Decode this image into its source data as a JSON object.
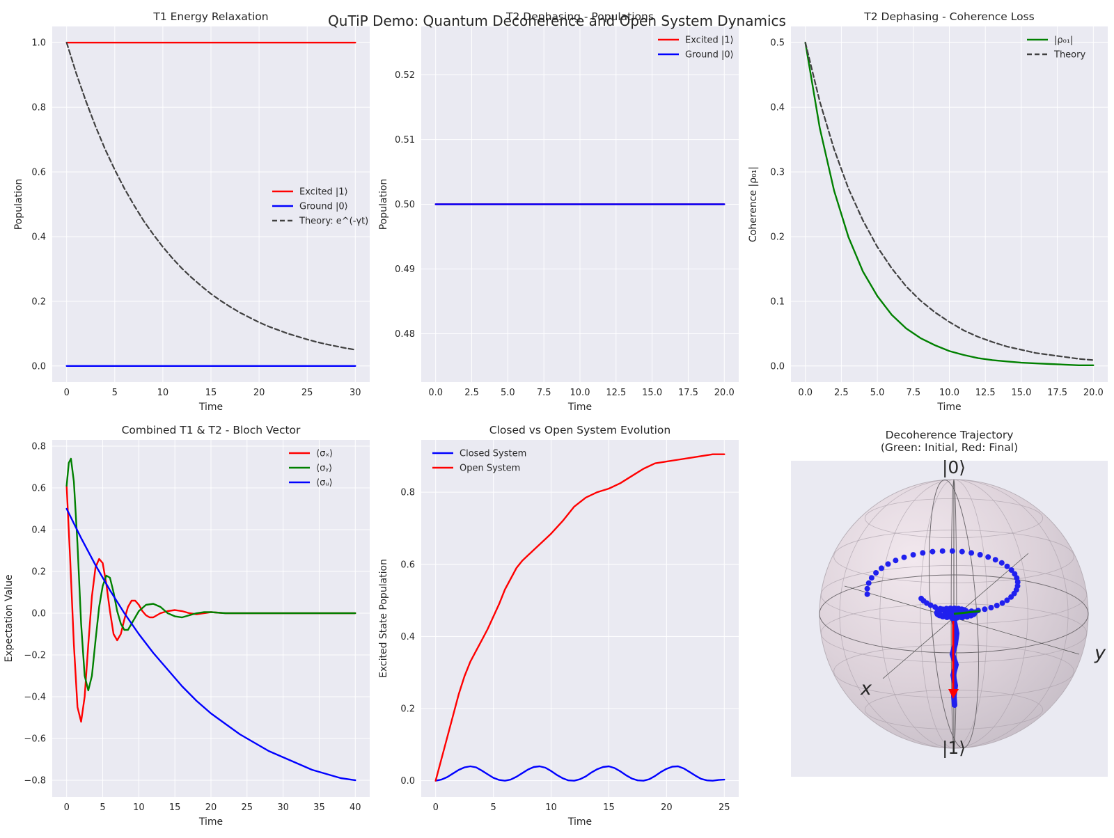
{
  "suptitle": "QuTiP Demo: Quantum Decoherence and Open System Dynamics",
  "colors": {
    "axes_bg": "#eaeaf2",
    "grid": "#ffffff",
    "red": "#ff0000",
    "blue": "#0000ff",
    "green": "#008000",
    "theory": "#404040",
    "bloch_point": "#2020ee"
  },
  "chart_data": [
    {
      "id": "t1",
      "type": "line",
      "title": "T1 Energy Relaxation",
      "xlabel": "Time",
      "ylabel": "Population",
      "xlim": [
        -1.5,
        31.5
      ],
      "ylim": [
        -0.05,
        1.05
      ],
      "xticks": [
        0,
        5,
        10,
        15,
        20,
        25,
        30
      ],
      "yticks": [
        0.0,
        0.2,
        0.4,
        0.6,
        0.8,
        1.0
      ],
      "ytick_labels": [
        "0.0",
        "0.2",
        "0.4",
        "0.6",
        "0.8",
        "1.0"
      ],
      "legend_loc": "center-right",
      "series": [
        {
          "name": "Excited |1⟩",
          "color": "#ff0000",
          "dash": false,
          "x": [
            0,
            30
          ],
          "y": [
            1.0,
            1.0
          ]
        },
        {
          "name": "Ground |0⟩",
          "color": "#0000ff",
          "dash": false,
          "x": [
            0,
            30
          ],
          "y": [
            0.0,
            0.0
          ]
        },
        {
          "name": "Theory: e^(-γt)",
          "color": "#404040",
          "dash": true,
          "x": [
            0,
            1,
            2,
            3,
            4,
            5,
            6,
            7,
            8,
            9,
            10,
            11,
            12,
            13,
            14,
            15,
            16,
            17,
            18,
            19,
            20,
            21,
            22,
            23,
            24,
            25,
            26,
            27,
            28,
            29,
            30
          ],
          "y": [
            1.0,
            0.905,
            0.819,
            0.741,
            0.67,
            0.607,
            0.549,
            0.497,
            0.449,
            0.407,
            0.368,
            0.333,
            0.301,
            0.273,
            0.247,
            0.223,
            0.202,
            0.183,
            0.165,
            0.15,
            0.135,
            0.122,
            0.111,
            0.1,
            0.091,
            0.082,
            0.074,
            0.067,
            0.061,
            0.055,
            0.05
          ]
        }
      ]
    },
    {
      "id": "t2pop",
      "type": "line",
      "title": "T2 Dephasing - Populations",
      "xlabel": "Time",
      "ylabel": "Population",
      "xlim": [
        -1.0,
        21.0
      ],
      "ylim": [
        0.4725,
        0.5275
      ],
      "xticks": [
        0,
        2.5,
        5,
        7.5,
        10,
        12.5,
        15,
        17.5,
        20
      ],
      "xtick_labels": [
        "0.0",
        "2.5",
        "5.0",
        "7.5",
        "10.0",
        "12.5",
        "15.0",
        "17.5",
        "20.0"
      ],
      "yticks": [
        0.48,
        0.49,
        0.5,
        0.51,
        0.52
      ],
      "ytick_labels": [
        "0.48",
        "0.49",
        "0.50",
        "0.51",
        "0.52"
      ],
      "legend_loc": "top-right",
      "series": [
        {
          "name": "Excited |1⟩",
          "color": "#ff0000",
          "dash": false,
          "x": [
            0,
            20
          ],
          "y": [
            0.5,
            0.5
          ]
        },
        {
          "name": "Ground |0⟩",
          "color": "#0000ff",
          "dash": false,
          "x": [
            0,
            20
          ],
          "y": [
            0.5,
            0.5
          ]
        }
      ]
    },
    {
      "id": "t2coh",
      "type": "line",
      "title": "T2 Dephasing - Coherence Loss",
      "xlabel": "Time",
      "ylabel": "Coherence |ρ₀₁|",
      "xlim": [
        -1.0,
        21.0
      ],
      "ylim": [
        -0.025,
        0.525
      ],
      "xticks": [
        0,
        2.5,
        5,
        7.5,
        10,
        12.5,
        15,
        17.5,
        20
      ],
      "xtick_labels": [
        "0.0",
        "2.5",
        "5.0",
        "7.5",
        "10.0",
        "12.5",
        "15.0",
        "17.5",
        "20.0"
      ],
      "yticks": [
        0.0,
        0.1,
        0.2,
        0.3,
        0.4,
        0.5
      ],
      "ytick_labels": [
        "0.0",
        "0.1",
        "0.2",
        "0.3",
        "0.4",
        "0.5"
      ],
      "legend_loc": "top-right",
      "series": [
        {
          "name": "|ρ₀₁|",
          "color": "#008000",
          "dash": false,
          "x": [
            0,
            1,
            2,
            3,
            4,
            5,
            6,
            7,
            8,
            9,
            10,
            11,
            12,
            13,
            14,
            15,
            16,
            17,
            18,
            19,
            20
          ],
          "y": [
            0.5,
            0.368,
            0.271,
            0.199,
            0.146,
            0.108,
            0.079,
            0.058,
            0.043,
            0.032,
            0.023,
            0.017,
            0.012,
            0.009,
            0.007,
            0.005,
            0.004,
            0.003,
            0.002,
            0.001,
            0.001
          ]
        },
        {
          "name": "Theory",
          "color": "#404040",
          "dash": true,
          "x": [
            0,
            1,
            2,
            3,
            4,
            5,
            6,
            7,
            8,
            9,
            10,
            11,
            12,
            13,
            14,
            15,
            16,
            17,
            18,
            19,
            20
          ],
          "y": [
            0.5,
            0.409,
            0.335,
            0.274,
            0.225,
            0.184,
            0.151,
            0.123,
            0.101,
            0.083,
            0.068,
            0.055,
            0.045,
            0.037,
            0.03,
            0.025,
            0.02,
            0.017,
            0.014,
            0.011,
            0.009
          ]
        }
      ]
    },
    {
      "id": "bloch",
      "type": "line",
      "title": "Combined T1 & T2 - Bloch Vector",
      "xlabel": "Time",
      "ylabel": "Expectation Value",
      "xlim": [
        -2.0,
        42.0
      ],
      "ylim": [
        -0.88,
        0.83
      ],
      "xticks": [
        0,
        5,
        10,
        15,
        20,
        25,
        30,
        35,
        40
      ],
      "yticks": [
        -0.8,
        -0.6,
        -0.4,
        -0.2,
        0.0,
        0.2,
        0.4,
        0.6,
        0.8
      ],
      "ytick_labels": [
        "−0.8",
        "−0.6",
        "−0.4",
        "−0.2",
        "0.0",
        "0.2",
        "0.4",
        "0.6",
        "0.8"
      ],
      "legend_loc": "top-right",
      "series": [
        {
          "name": "⟨σₓ⟩",
          "color": "#ff0000",
          "dash": false,
          "x": [
            0,
            0.5,
            1,
            1.5,
            2,
            2.5,
            3,
            3.5,
            4,
            4.5,
            5,
            5.5,
            6,
            6.5,
            7,
            7.5,
            8,
            8.5,
            9,
            9.5,
            10,
            10.5,
            11,
            11.5,
            12,
            12.5,
            13,
            14,
            15,
            16,
            17,
            18,
            19,
            20,
            22,
            24,
            26,
            28,
            30,
            34,
            40
          ],
          "y": [
            0.61,
            0.25,
            -0.15,
            -0.45,
            -0.52,
            -0.4,
            -0.15,
            0.08,
            0.22,
            0.26,
            0.24,
            0.14,
            0.01,
            -0.1,
            -0.13,
            -0.1,
            -0.03,
            0.03,
            0.06,
            0.06,
            0.04,
            0.01,
            -0.01,
            -0.02,
            -0.02,
            -0.01,
            0.0,
            0.01,
            0.015,
            0.01,
            0.0,
            -0.005,
            0.0,
            0.005,
            0.0,
            0.0,
            0.0,
            0.0,
            0.0,
            0.0,
            0.0
          ]
        },
        {
          "name": "⟨σᵧ⟩",
          "color": "#008000",
          "dash": false,
          "x": [
            0,
            0.3,
            0.6,
            1.0,
            1.5,
            2.0,
            2.5,
            3.0,
            3.5,
            4.0,
            4.5,
            5.0,
            5.5,
            6.0,
            6.5,
            7.0,
            7.5,
            8.0,
            8.5,
            9.0,
            9.5,
            10.0,
            11.0,
            12.0,
            13.0,
            14.0,
            15.0,
            16.0,
            17.0,
            18.0,
            19.0,
            20.0,
            22,
            25,
            30,
            35,
            40
          ],
          "y": [
            0.61,
            0.72,
            0.74,
            0.63,
            0.33,
            -0.05,
            -0.3,
            -0.37,
            -0.3,
            -0.13,
            0.03,
            0.13,
            0.18,
            0.17,
            0.1,
            0.01,
            -0.05,
            -0.08,
            -0.08,
            -0.05,
            -0.02,
            0.01,
            0.04,
            0.045,
            0.03,
            0.0,
            -0.015,
            -0.02,
            -0.01,
            0.0,
            0.005,
            0.005,
            0.0,
            0.0,
            0.0,
            0.0,
            0.0
          ]
        },
        {
          "name": "⟨σᵤ⟩",
          "color": "#0000ff",
          "dash": false,
          "x": [
            0,
            2,
            4,
            6,
            8,
            10,
            12,
            14,
            16,
            18,
            20,
            22,
            24,
            26,
            28,
            30,
            32,
            34,
            36,
            38,
            40
          ],
          "y": [
            0.5,
            0.36,
            0.23,
            0.11,
            0.0,
            -0.1,
            -0.19,
            -0.27,
            -0.35,
            -0.42,
            -0.48,
            -0.53,
            -0.58,
            -0.62,
            -0.66,
            -0.69,
            -0.72,
            -0.75,
            -0.77,
            -0.79,
            -0.8
          ]
        }
      ]
    },
    {
      "id": "closedopen",
      "type": "line",
      "title": "Closed vs Open System Evolution",
      "xlabel": "Time",
      "ylabel": "Excited State Population",
      "xlim": [
        -1.25,
        26.25
      ],
      "ylim": [
        -0.045,
        0.945
      ],
      "xticks": [
        0,
        5,
        10,
        15,
        20,
        25
      ],
      "yticks": [
        0.0,
        0.2,
        0.4,
        0.6,
        0.8
      ],
      "ytick_labels": [
        "0.0",
        "0.2",
        "0.4",
        "0.6",
        "0.8"
      ],
      "legend_loc": "top-left",
      "series": [
        {
          "name": "Closed System",
          "color": "#0000ff",
          "dash": false,
          "x": [
            0,
            0.5,
            1,
            1.5,
            2,
            2.5,
            3,
            3.5,
            4,
            4.5,
            5,
            5.5,
            6,
            6.5,
            7,
            7.5,
            8,
            8.5,
            9,
            9.5,
            10,
            10.5,
            11,
            11.5,
            12,
            12.5,
            13,
            13.5,
            14,
            14.5,
            15,
            15.5,
            16,
            16.5,
            17,
            17.5,
            18,
            18.5,
            19,
            19.5,
            20,
            20.5,
            21,
            21.5,
            22,
            22.5,
            23,
            23.5,
            24,
            24.5,
            25
          ],
          "y": [
            0.0,
            0.003,
            0.01,
            0.02,
            0.03,
            0.037,
            0.04,
            0.037,
            0.028,
            0.018,
            0.008,
            0.002,
            0.0,
            0.003,
            0.011,
            0.021,
            0.031,
            0.038,
            0.04,
            0.036,
            0.027,
            0.016,
            0.007,
            0.001,
            0.0,
            0.004,
            0.012,
            0.023,
            0.032,
            0.038,
            0.04,
            0.035,
            0.026,
            0.015,
            0.006,
            0.001,
            0.0,
            0.004,
            0.013,
            0.024,
            0.033,
            0.039,
            0.04,
            0.034,
            0.024,
            0.014,
            0.005,
            0.001,
            0.0,
            0.002,
            0.003
          ]
        },
        {
          "name": "Open System",
          "color": "#ff0000",
          "dash": false,
          "x": [
            0,
            0.5,
            1,
            1.5,
            2,
            2.5,
            3,
            3.5,
            4,
            4.5,
            5,
            5.5,
            6,
            6.5,
            7,
            7.5,
            8,
            8.5,
            9,
            9.5,
            10,
            11,
            12,
            13,
            14,
            15,
            16,
            17,
            18,
            19,
            20,
            21,
            22,
            23,
            24,
            25
          ],
          "y": [
            0.0,
            0.06,
            0.12,
            0.18,
            0.24,
            0.29,
            0.33,
            0.36,
            0.39,
            0.42,
            0.455,
            0.49,
            0.53,
            0.56,
            0.59,
            0.61,
            0.625,
            0.64,
            0.655,
            0.67,
            0.685,
            0.72,
            0.76,
            0.785,
            0.8,
            0.81,
            0.825,
            0.845,
            0.865,
            0.88,
            0.885,
            0.89,
            0.895,
            0.9,
            0.905,
            0.905
          ]
        }
      ]
    }
  ],
  "bloch_panel": {
    "title": "Decoherence Trajectory",
    "subtitle": "(Green: Initial, Red: Final)",
    "label_top": "|0⟩",
    "label_bottom": "|1⟩",
    "label_x": "x",
    "label_y": "y"
  }
}
